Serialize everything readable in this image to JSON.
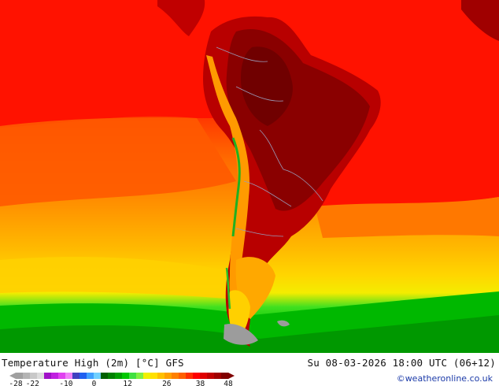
{
  "map": {
    "title": "Temperature High (2m) [°C] GFS",
    "datetime": "Su 08-03-2026 18:00 UTC (06+12)",
    "credit": "©weatheronline.co.uk"
  },
  "colorbar": {
    "tick_labels": [
      "-28",
      "-22",
      "-10",
      "0",
      "12",
      "26",
      "38",
      "48"
    ],
    "tick_values": [
      -28,
      -22,
      -10,
      0,
      12,
      26,
      38,
      48
    ],
    "min": -28,
    "max": 48,
    "colors": [
      "#a0a0a0",
      "#b4b4b4",
      "#c8c8c8",
      "#dcdcdc",
      "#a010c8",
      "#c020e0",
      "#e040f0",
      "#f080f8",
      "#4040c0",
      "#2060f0",
      "#40a0ff",
      "#70d0ff",
      "#006000",
      "#008000",
      "#00a000",
      "#00c800",
      "#40e040",
      "#80f040",
      "#f0f000",
      "#ffe000",
      "#ffc000",
      "#ffa000",
      "#ff8000",
      "#ff6000",
      "#ff3000",
      "#ff0000",
      "#e00000",
      "#c00000",
      "#a00000",
      "#800000"
    ]
  },
  "legend_colors": {
    "tropics": "#ff0000",
    "dark_hot": "#9a0000",
    "warm": "#ffa000",
    "mild": "#ffc400",
    "cool": "#f5e600",
    "cold": "#00c000",
    "ocean_band": "#e02000"
  }
}
